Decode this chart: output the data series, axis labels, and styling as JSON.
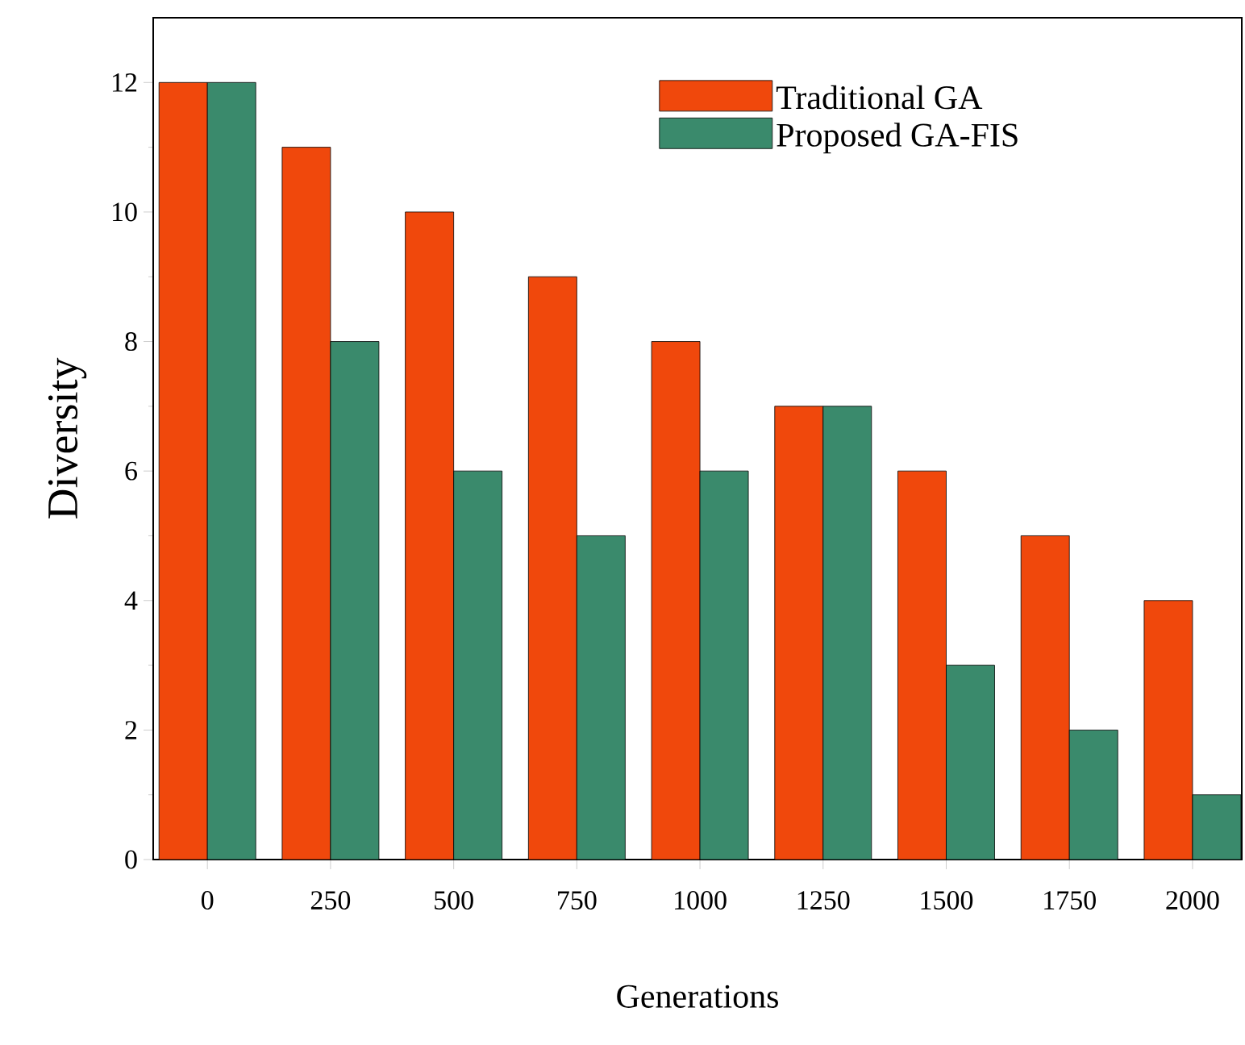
{
  "chart_data": {
    "type": "bar",
    "xlabel": "Generations",
    "ylabel": "Diversity",
    "categories": [
      "0",
      "250",
      "500",
      "750",
      "1000",
      "1250",
      "1500",
      "1750",
      "2000"
    ],
    "series": [
      {
        "name": "Traditional GA",
        "color": "#f0480c",
        "values": [
          12,
          11,
          10,
          9,
          8,
          7,
          6,
          5,
          4
        ]
      },
      {
        "name": "Proposed GA-FIS",
        "color": "#3a8a6c",
        "values": [
          12,
          8,
          6,
          5,
          6,
          7,
          3,
          2,
          1
        ]
      }
    ],
    "ylim": [
      0,
      13
    ],
    "yticks": [
      0,
      2,
      4,
      6,
      8,
      10,
      12
    ],
    "legend": "top right"
  }
}
